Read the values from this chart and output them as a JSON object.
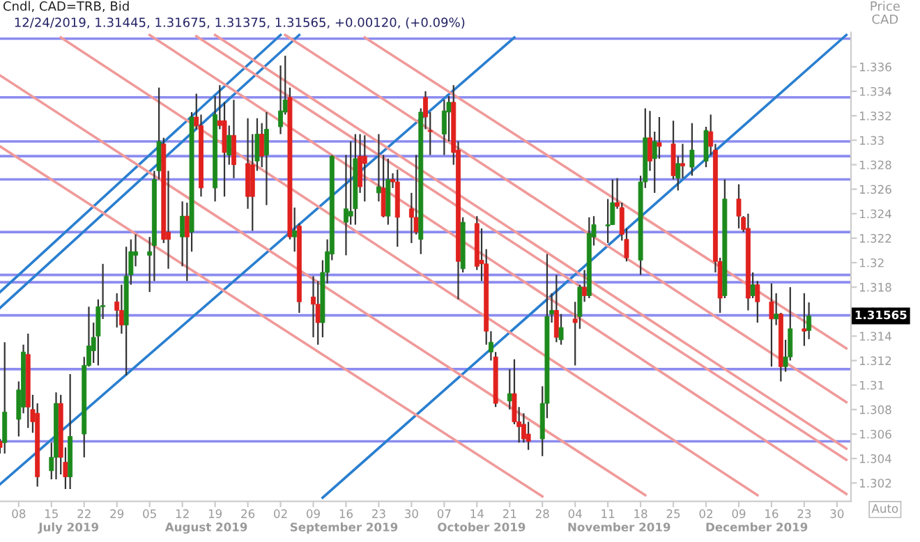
{
  "chart_data": {
    "type": "candlestick",
    "title": "Cndl, CAD=TRB, Bid",
    "subtitle": "12/24/2019, 1.31445, 1.31675, 1.31375, 1.31565, +0.00120, (+0.09%)",
    "ylabel": "Price\nCAD",
    "x": [
      "2019-07-04",
      "2019-07-05",
      "2019-07-08",
      "2019-07-09",
      "2019-07-10",
      "2019-07-11",
      "2019-07-12",
      "2019-07-15",
      "2019-07-16",
      "2019-07-17",
      "2019-07-18",
      "2019-07-19",
      "2019-07-22",
      "2019-07-23",
      "2019-07-24",
      "2019-07-25",
      "2019-07-26",
      "2019-07-29",
      "2019-07-30",
      "2019-07-31",
      "2019-08-01",
      "2019-08-02",
      "2019-08-05",
      "2019-08-06",
      "2019-08-07",
      "2019-08-08",
      "2019-08-09",
      "2019-08-12",
      "2019-08-13",
      "2019-08-14",
      "2019-08-15",
      "2019-08-16",
      "2019-08-19",
      "2019-08-20",
      "2019-08-21",
      "2019-08-22",
      "2019-08-23",
      "2019-08-26",
      "2019-08-27",
      "2019-08-28",
      "2019-08-29",
      "2019-08-30",
      "2019-09-02",
      "2019-09-03",
      "2019-09-04",
      "2019-09-05",
      "2019-09-06",
      "2019-09-09",
      "2019-09-10",
      "2019-09-11",
      "2019-09-12",
      "2019-09-13",
      "2019-09-16",
      "2019-09-17",
      "2019-09-18",
      "2019-09-19",
      "2019-09-20",
      "2019-09-23",
      "2019-09-24",
      "2019-09-25",
      "2019-09-26",
      "2019-09-27",
      "2019-09-30",
      "2019-10-01",
      "2019-10-02",
      "2019-10-03",
      "2019-10-04",
      "2019-10-07",
      "2019-10-08",
      "2019-10-09",
      "2019-10-10",
      "2019-10-11",
      "2019-10-14",
      "2019-10-15",
      "2019-10-16",
      "2019-10-17",
      "2019-10-18",
      "2019-10-21",
      "2019-10-22",
      "2019-10-23",
      "2019-10-24",
      "2019-10-25",
      "2019-10-28",
      "2019-10-29",
      "2019-10-30",
      "2019-10-31",
      "2019-11-01",
      "2019-11-04",
      "2019-11-05",
      "2019-11-06",
      "2019-11-07",
      "2019-11-08",
      "2019-11-11",
      "2019-11-12",
      "2019-11-13",
      "2019-11-14",
      "2019-11-15",
      "2019-11-18",
      "2019-11-19",
      "2019-11-20",
      "2019-11-21",
      "2019-11-22",
      "2019-11-25",
      "2019-11-26",
      "2019-11-27",
      "2019-11-29",
      "2019-12-02",
      "2019-12-03",
      "2019-12-04",
      "2019-12-05",
      "2019-12-06",
      "2019-12-09",
      "2019-12-10",
      "2019-12-11",
      "2019-12-12",
      "2019-12-13",
      "2019-12-16",
      "2019-12-17",
      "2019-12-18",
      "2019-12-19",
      "2019-12-20",
      "2019-12-23",
      "2019-12-24"
    ],
    "ohlc": [
      [
        1.3054,
        1.3056,
        1.3044,
        1.3049
      ],
      [
        1.3053,
        1.3135,
        1.3044,
        1.3078
      ],
      [
        1.3072,
        1.3103,
        1.3058,
        1.3096
      ],
      [
        1.3082,
        1.3133,
        1.3077,
        1.3127
      ],
      [
        1.3125,
        1.3142,
        1.3065,
        1.3082
      ],
      [
        1.308,
        1.3092,
        1.3061,
        1.307
      ],
      [
        1.3077,
        1.3085,
        1.3017,
        1.3025
      ],
      [
        1.303,
        1.3053,
        1.3023,
        1.3041
      ],
      [
        1.3041,
        1.3094,
        1.3023,
        1.3085
      ],
      [
        1.3085,
        1.3092,
        1.3027,
        1.3041
      ],
      [
        1.3037,
        1.3049,
        1.3015,
        1.3025
      ],
      [
        1.3025,
        1.3109,
        1.3015,
        1.3058
      ],
      [
        1.306,
        1.3123,
        1.3041,
        1.3116
      ],
      [
        1.3116,
        1.3164,
        1.3115,
        1.3132
      ],
      [
        1.3128,
        1.3151,
        1.3118,
        1.3139
      ],
      [
        1.314,
        1.317,
        1.3116,
        1.3164
      ],
      [
        1.3164,
        1.3199,
        1.3154,
        1.3165
      ],
      [
        1.3168,
        1.3175,
        1.3147,
        1.3161
      ],
      [
        1.3161,
        1.3182,
        1.3142,
        1.3149
      ],
      [
        1.3149,
        1.3213,
        1.3108,
        1.3189
      ],
      [
        1.319,
        1.3219,
        1.3182,
        1.3209
      ],
      [
        1.3206,
        1.3223,
        1.3197,
        1.3209
      ],
      [
        1.3206,
        1.3221,
        1.3176,
        1.3209
      ],
      [
        1.3214,
        1.3275,
        1.3185,
        1.3268
      ],
      [
        1.3275,
        1.3343,
        1.3268,
        1.3299
      ],
      [
        1.3297,
        1.3302,
        1.3216,
        1.3219
      ],
      [
        1.3225,
        1.3275,
        1.3195,
        1.3219
      ],
      [
        1.3221,
        1.325,
        1.3197,
        1.3238
      ],
      [
        1.3238,
        1.3249,
        1.3185,
        1.3221
      ],
      [
        1.3225,
        1.3323,
        1.3209,
        1.3319
      ],
      [
        1.3319,
        1.3338,
        1.3309,
        1.3312
      ],
      [
        1.3312,
        1.3321,
        1.3254,
        1.3261
      ],
      [
        1.3261,
        1.3336,
        1.325,
        1.3321
      ],
      [
        1.3316,
        1.3345,
        1.3309,
        1.3312
      ],
      [
        1.3316,
        1.3331,
        1.3254,
        1.329
      ],
      [
        1.3288,
        1.3312,
        1.328,
        1.3304
      ],
      [
        1.3304,
        1.3333,
        1.3269,
        1.328
      ],
      [
        1.3281,
        1.3318,
        1.3244,
        1.3254
      ],
      [
        1.328,
        1.3305,
        1.3226,
        1.3254
      ],
      [
        1.3283,
        1.3318,
        1.3275,
        1.3305
      ],
      [
        1.3305,
        1.3314,
        1.3278,
        1.3287
      ],
      [
        1.3288,
        1.3323,
        1.3247,
        1.3309
      ],
      [
        1.3311,
        1.3361,
        1.3305,
        1.3324
      ],
      [
        1.3323,
        1.3369,
        1.3321,
        1.3333
      ],
      [
        1.3335,
        1.3343,
        1.3219,
        1.3221
      ],
      [
        1.3221,
        1.3245,
        1.3209,
        1.3226
      ],
      [
        1.323,
        1.3232,
        1.3159,
        1.3168
      ],
      [
        1.3172,
        1.3189,
        1.3139,
        1.3166
      ],
      [
        1.3166,
        1.3185,
        1.3133,
        1.3151
      ],
      [
        1.3151,
        1.3202,
        1.3139,
        1.3192
      ],
      [
        1.3192,
        1.3219,
        1.3183,
        1.3209
      ],
      [
        1.3207,
        1.3288,
        1.3202,
        1.3287
      ],
      [
        1.3233,
        1.3288,
        1.3206,
        1.3244
      ],
      [
        1.3238,
        1.3299,
        1.3231,
        1.3242
      ],
      [
        1.3244,
        1.3305,
        1.3231,
        1.3285
      ],
      [
        1.3287,
        1.3305,
        1.3257,
        1.3262
      ],
      [
        1.3287,
        1.3304,
        1.325,
        1.3281
      ],
      [
        1.3257,
        1.3305,
        1.325,
        1.3262
      ],
      [
        1.3261,
        1.3288,
        1.3237,
        1.3238
      ],
      [
        1.3238,
        1.3285,
        1.3231,
        1.3268
      ],
      [
        1.3268,
        1.3273,
        1.3261,
        1.3266
      ],
      [
        1.3266,
        1.3276,
        1.3213,
        1.3237
      ],
      [
        1.3244,
        1.3257,
        1.3216,
        1.3237
      ],
      [
        1.3237,
        1.3288,
        1.3223,
        1.3225
      ],
      [
        1.3219,
        1.3326,
        1.3207,
        1.3323
      ],
      [
        1.3335,
        1.334,
        1.3309,
        1.3319
      ],
      [
        1.3308,
        1.3323,
        1.3288,
        1.3307
      ],
      [
        1.3305,
        1.3333,
        1.3288,
        1.3324
      ],
      [
        1.3323,
        1.3336,
        1.3299,
        1.3331
      ],
      [
        1.3331,
        1.3345,
        1.328,
        1.329
      ],
      [
        1.3292,
        1.3299,
        1.317,
        1.3201
      ],
      [
        1.3195,
        1.3237,
        1.3192,
        1.3233
      ],
      [
        1.3232,
        1.3238,
        1.3194,
        1.3197
      ],
      [
        1.3202,
        1.3228,
        1.3185,
        1.3199
      ],
      [
        1.3199,
        1.3211,
        1.3133,
        1.3144
      ],
      [
        1.3127,
        1.3144,
        1.312,
        1.3135
      ],
      [
        1.3123,
        1.3127,
        1.3082,
        1.3085
      ],
      [
        1.3087,
        1.3113,
        1.308,
        1.3093
      ],
      [
        1.3093,
        1.3121,
        1.3068,
        1.307
      ],
      [
        1.307,
        1.3082,
        1.3053,
        1.3066
      ],
      [
        1.3068,
        1.3077,
        1.3053,
        1.3056
      ],
      [
        1.306,
        1.307,
        1.3047,
        1.3054
      ],
      [
        1.3056,
        1.3099,
        1.3042,
        1.3085
      ],
      [
        1.3085,
        1.3207,
        1.3073,
        1.3156
      ],
      [
        1.3158,
        1.3175,
        1.3151,
        1.3161
      ],
      [
        1.3161,
        1.319,
        1.3135,
        1.3139
      ],
      [
        1.3137,
        1.3158,
        1.3133,
        1.3147
      ],
      [
        1.3154,
        1.3168,
        1.3116,
        1.3151
      ],
      [
        1.3156,
        1.3182,
        1.3146,
        1.318
      ],
      [
        1.318,
        1.3194,
        1.3168,
        1.3173
      ],
      [
        1.3173,
        1.3237,
        1.3171,
        1.3224
      ],
      [
        1.3221,
        1.3238,
        1.3214,
        1.3231
      ],
      [
        1.323,
        1.3252,
        1.3216,
        1.3231
      ],
      [
        1.3231,
        1.3268,
        1.3231,
        1.3249
      ],
      [
        1.3249,
        1.3269,
        1.3244,
        1.3246
      ],
      [
        1.3245,
        1.3249,
        1.3218,
        1.3223
      ],
      [
        1.3219,
        1.3228,
        1.3201,
        1.3204
      ],
      [
        1.3202,
        1.3271,
        1.319,
        1.3266
      ],
      [
        1.3266,
        1.3326,
        1.3261,
        1.3302
      ],
      [
        1.3302,
        1.3324,
        1.3275,
        1.3283
      ],
      [
        1.3285,
        1.3307,
        1.3257,
        1.3299
      ],
      [
        1.3298,
        1.3319,
        1.3285,
        1.3295
      ],
      [
        1.3297,
        1.3316,
        1.3268,
        1.3271
      ],
      [
        1.3269,
        1.3287,
        1.3259,
        1.3281
      ],
      [
        1.3281,
        1.3297,
        1.3269,
        1.3279
      ],
      [
        1.3278,
        1.3314,
        1.3271,
        1.3292
      ],
      [
        1.3283,
        1.3311,
        1.3278,
        1.3308
      ],
      [
        1.3307,
        1.3321,
        1.3288,
        1.3295
      ],
      [
        1.3292,
        1.3297,
        1.3192,
        1.3201
      ],
      [
        1.3201,
        1.3204,
        1.3159,
        1.3171
      ],
      [
        1.3173,
        1.3268,
        1.3171,
        1.3252
      ],
      [
        1.3252,
        1.3264,
        1.3228,
        1.3238
      ],
      [
        1.3237,
        1.3238,
        1.3225,
        1.3227
      ],
      [
        1.3228,
        1.324,
        1.3161,
        1.3171
      ],
      [
        1.3173,
        1.3192,
        1.3171,
        1.3182
      ],
      [
        1.3182,
        1.3185,
        1.3151,
        1.3168
      ],
      [
        1.3168,
        1.3183,
        1.3115,
        1.3154
      ],
      [
        1.3154,
        1.3175,
        1.3149,
        1.3158
      ],
      [
        1.3158,
        1.3159,
        1.3103,
        1.3115
      ],
      [
        1.3115,
        1.3137,
        1.3111,
        1.3123
      ],
      [
        1.3123,
        1.318,
        1.312,
        1.3146
      ],
      [
        1.3146,
        1.3175,
        1.3132,
        1.3144
      ],
      [
        1.31445,
        1.31675,
        1.31375,
        1.31565
      ]
    ],
    "series": [
      {
        "type": "line",
        "color": "#2a7fd0",
        "x": [
          "2019-07-04",
          "2019-09-02"
        ],
        "values": [
          1.3176,
          1.3386
        ]
      },
      {
        "type": "line",
        "color": "#2a7fd0",
        "x": [
          "2019-07-04",
          "2019-09-06"
        ],
        "values": [
          1.3163,
          1.3386
        ]
      },
      {
        "type": "line",
        "color": "#2a7fd0",
        "x": [
          "2019-07-04",
          "2019-10-22"
        ],
        "values": [
          1.3019,
          1.3384
        ]
      },
      {
        "type": "line",
        "color": "#2a7fd0",
        "x": [
          "2019-09-11",
          "2020-01-01"
        ],
        "values": [
          1.3008,
          1.3386
        ]
      },
      {
        "type": "line",
        "color": "#f09a9a",
        "x": [
          "2019-09-20",
          "2020-01-01"
        ],
        "values": [
          1.3384,
          1.313
        ]
      },
      {
        "type": "line",
        "color": "#f09a9a",
        "x": [
          "2019-09-03",
          "2020-01-01"
        ],
        "values": [
          1.3386,
          1.3086
        ]
      },
      {
        "type": "line",
        "color": "#f09a9a",
        "x": [
          "2019-08-19",
          "2020-01-01"
        ],
        "values": [
          1.3386,
          1.3048
        ]
      },
      {
        "type": "line",
        "color": "#f09a9a",
        "x": [
          "2019-08-15",
          "2020-01-01"
        ],
        "values": [
          1.3385,
          1.3039
        ]
      },
      {
        "type": "line",
        "color": "#f09a9a",
        "x": [
          "2019-08-05",
          "2020-01-01"
        ],
        "values": [
          1.3386,
          1.3011
        ]
      },
      {
        "type": "line",
        "color": "#f09a9a",
        "x": [
          "2019-07-17",
          "2019-12-13"
        ],
        "values": [
          1.3384,
          1.301
        ]
      },
      {
        "type": "line",
        "color": "#f09a9a",
        "x": [
          "2019-07-04",
          "2019-11-19"
        ],
        "values": [
          1.3353,
          1.301
        ]
      },
      {
        "type": "line",
        "color": "#f09a9a",
        "x": [
          "2019-07-04",
          "2019-10-28"
        ],
        "values": [
          1.3295,
          1.3009
        ]
      }
    ],
    "ref_lines": [
      {
        "axis": "y",
        "value": 1.3383,
        "color": "#8c8cf0"
      },
      {
        "axis": "y",
        "value": 1.3335,
        "color": "#8c8cf0"
      },
      {
        "axis": "y",
        "value": 1.3299,
        "color": "#8c8cf0"
      },
      {
        "axis": "y",
        "value": 1.3287,
        "color": "#8c8cf0"
      },
      {
        "axis": "y",
        "value": 1.3268,
        "color": "#8c8cf0"
      },
      {
        "axis": "y",
        "value": 1.3225,
        "color": "#8c8cf0"
      },
      {
        "axis": "y",
        "value": 1.319,
        "color": "#8c8cf0"
      },
      {
        "axis": "y",
        "value": 1.3184,
        "color": "#8c8cf0"
      },
      {
        "axis": "y",
        "value": 1.3157,
        "color": "#8c8cf0"
      },
      {
        "axis": "y",
        "value": 1.3113,
        "color": "#8c8cf0"
      },
      {
        "axis": "y",
        "value": 1.3054,
        "color": "#8c8cf0"
      }
    ],
    "xlim": [
      "2019-07-04",
      "2020-01-02"
    ],
    "xticks": [
      {
        "value": "2019-07-08",
        "label": "08"
      },
      {
        "value": "2019-07-15",
        "label": "15"
      },
      {
        "value": "2019-07-22",
        "label": "22"
      },
      {
        "value": "2019-07-29",
        "label": "29"
      },
      {
        "value": "2019-08-05",
        "label": "05"
      },
      {
        "value": "2019-08-12",
        "label": "12"
      },
      {
        "value": "2019-08-19",
        "label": "19"
      },
      {
        "value": "2019-08-26",
        "label": "26"
      },
      {
        "value": "2019-09-02",
        "label": "02"
      },
      {
        "value": "2019-09-09",
        "label": "09"
      },
      {
        "value": "2019-09-16",
        "label": "16"
      },
      {
        "value": "2019-09-23",
        "label": "23"
      },
      {
        "value": "2019-09-30",
        "label": "30"
      },
      {
        "value": "2019-10-07",
        "label": "07"
      },
      {
        "value": "2019-10-14",
        "label": "14"
      },
      {
        "value": "2019-10-21",
        "label": "21"
      },
      {
        "value": "2019-10-28",
        "label": "28"
      },
      {
        "value": "2019-11-04",
        "label": "04"
      },
      {
        "value": "2019-11-11",
        "label": "11"
      },
      {
        "value": "2019-11-18",
        "label": "18"
      },
      {
        "value": "2019-11-25",
        "label": "25"
      },
      {
        "value": "2019-12-02",
        "label": "02"
      },
      {
        "value": "2019-12-09",
        "label": "09"
      },
      {
        "value": "2019-12-16",
        "label": "16"
      },
      {
        "value": "2019-12-23",
        "label": "23"
      },
      {
        "value": "2019-12-30",
        "label": "30"
      }
    ],
    "ylim": [
      1.3005,
      1.3388
    ],
    "yticks": [
      1.302,
      1.304,
      1.306,
      1.308,
      1.31,
      1.312,
      1.314,
      1.316,
      1.318,
      1.32,
      1.322,
      1.324,
      1.326,
      1.328,
      1.33,
      1.332,
      1.334,
      1.336
    ],
    "annotations": [
      "1.31565",
      "Auto",
      "July 2019",
      "August 2019",
      "September 2019",
      "October 2019",
      "November 2019",
      "December 2019"
    ],
    "grid": false,
    "legend": false
  }
}
